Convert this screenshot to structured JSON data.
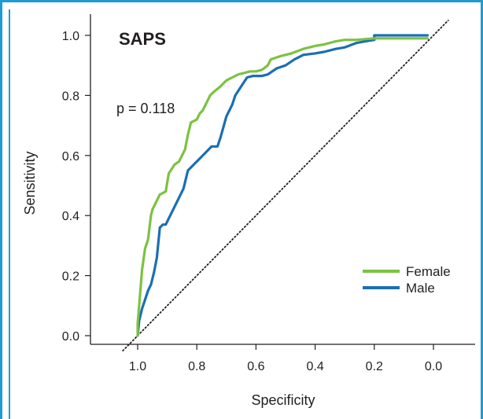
{
  "chart_data": {
    "type": "line",
    "title": "SAPS",
    "annotation": "p = 0.118",
    "xlabel": "Specificity",
    "ylabel": "Sensitivity",
    "xlim": [
      1.1,
      -0.1
    ],
    "ylim": [
      -0.02,
      1.04
    ],
    "x_reversed": true,
    "grid": false,
    "legend_position": "lower-right",
    "xticks": [
      1.0,
      0.8,
      0.6,
      0.4,
      0.2,
      0.0
    ],
    "xtick_labels": [
      "1.0",
      "0.8",
      "0.6",
      "0.4",
      "0.2",
      "0.0"
    ],
    "yticks": [
      0.0,
      0.2,
      0.4,
      0.6,
      0.8,
      1.0
    ],
    "ytick_labels": [
      "0.0",
      "0.2",
      "0.4",
      "0.6",
      "0.8",
      "1.0"
    ],
    "reference_line": {
      "x": [
        1.05,
        -0.05
      ],
      "y": [
        -0.05,
        1.05
      ],
      "style": "dotted"
    },
    "series": [
      {
        "name": "Female",
        "color": "#7cc242",
        "x": [
          1.0,
          1.0,
          0.995,
          0.985,
          0.975,
          0.965,
          0.955,
          0.95,
          0.935,
          0.925,
          0.905,
          0.895,
          0.875,
          0.86,
          0.85,
          0.84,
          0.83,
          0.82,
          0.8,
          0.79,
          0.78,
          0.77,
          0.755,
          0.745,
          0.72,
          0.7,
          0.68,
          0.66,
          0.64,
          0.62,
          0.6,
          0.58,
          0.56,
          0.55,
          0.52,
          0.48,
          0.44,
          0.4,
          0.37,
          0.33,
          0.3,
          0.26,
          0.2,
          0.1,
          0.02
        ],
        "y": [
          0.0,
          0.04,
          0.1,
          0.22,
          0.29,
          0.32,
          0.4,
          0.42,
          0.45,
          0.47,
          0.48,
          0.54,
          0.57,
          0.58,
          0.6,
          0.62,
          0.67,
          0.71,
          0.72,
          0.74,
          0.75,
          0.77,
          0.8,
          0.81,
          0.83,
          0.85,
          0.86,
          0.87,
          0.875,
          0.88,
          0.88,
          0.885,
          0.9,
          0.92,
          0.93,
          0.94,
          0.955,
          0.965,
          0.97,
          0.98,
          0.985,
          0.985,
          0.99,
          0.99,
          0.99
        ]
      },
      {
        "name": "Male",
        "color": "#1a6fb5",
        "x": [
          1.0,
          0.995,
          0.985,
          0.975,
          0.965,
          0.955,
          0.945,
          0.935,
          0.925,
          0.915,
          0.905,
          0.885,
          0.865,
          0.845,
          0.83,
          0.81,
          0.79,
          0.77,
          0.75,
          0.73,
          0.72,
          0.7,
          0.68,
          0.67,
          0.65,
          0.63,
          0.61,
          0.58,
          0.56,
          0.53,
          0.5,
          0.47,
          0.44,
          0.4,
          0.37,
          0.33,
          0.3,
          0.26,
          0.23,
          0.2,
          0.2,
          0.1,
          0.02
        ],
        "y": [
          0.0,
          0.05,
          0.09,
          0.12,
          0.15,
          0.17,
          0.21,
          0.26,
          0.36,
          0.37,
          0.37,
          0.41,
          0.45,
          0.49,
          0.55,
          0.57,
          0.59,
          0.61,
          0.63,
          0.63,
          0.66,
          0.73,
          0.77,
          0.8,
          0.83,
          0.86,
          0.865,
          0.865,
          0.87,
          0.89,
          0.9,
          0.92,
          0.935,
          0.94,
          0.945,
          0.955,
          0.96,
          0.975,
          0.98,
          0.985,
          1.0,
          1.0,
          1.0
        ]
      }
    ]
  },
  "frame": {
    "accent": "#1d9bd7"
  }
}
